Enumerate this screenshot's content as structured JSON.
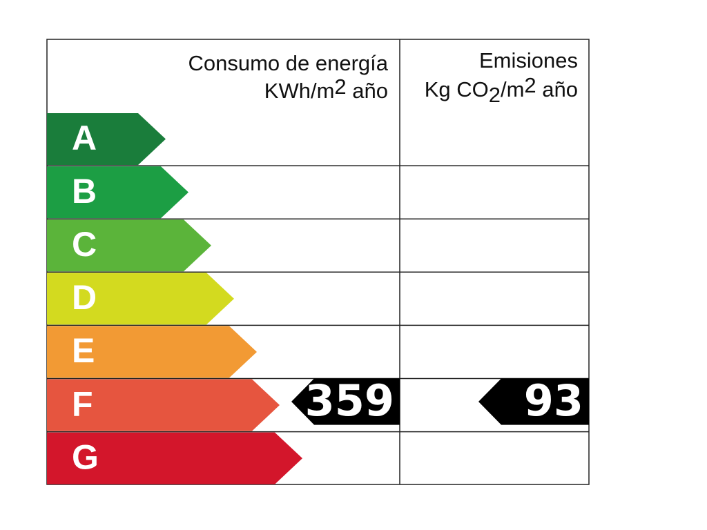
{
  "header": {
    "consumption": {
      "title": "Consumo de energía",
      "unit_a": "KWh/m",
      "unit_sup": "2",
      "unit_b": " año"
    },
    "emissions": {
      "title": "Emisiones",
      "unit_a": "Kg CO",
      "unit_sub": "2",
      "unit_b": "/m",
      "unit_sup": "2",
      "unit_c": " año"
    }
  },
  "ratings": [
    {
      "letter": "A",
      "color": "#1a7d3b"
    },
    {
      "letter": "B",
      "color": "#1c9e44"
    },
    {
      "letter": "C",
      "color": "#5bb43a"
    },
    {
      "letter": "D",
      "color": "#d3da1f"
    },
    {
      "letter": "E",
      "color": "#f29a34"
    },
    {
      "letter": "F",
      "color": "#e6553f"
    },
    {
      "letter": "G",
      "color": "#d3162b"
    }
  ],
  "consumption": {
    "rating": "F",
    "value": 359
  },
  "emissions": {
    "rating": "F",
    "value": 93
  }
}
